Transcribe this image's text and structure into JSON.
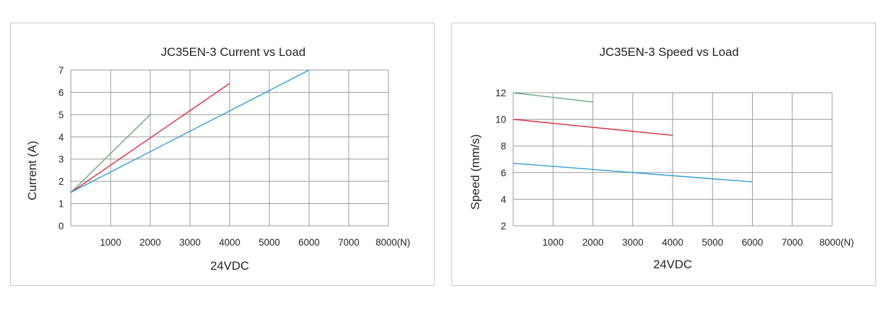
{
  "colors": {
    "grid": "#9a9a9a",
    "frame": "#c8c8c8",
    "green": "#6aa57a",
    "red": "#d9273a",
    "blue": "#2e9fd6"
  },
  "chart_data": [
    {
      "type": "line",
      "title": "JC35EN-3 Current vs Load",
      "xlabel": "24VDC",
      "ylabel": "Current (A)",
      "xlim": [
        0,
        8000
      ],
      "ylim": [
        0,
        7
      ],
      "x_ticks": [
        1000,
        2000,
        3000,
        4000,
        5000,
        6000,
        7000,
        8000
      ],
      "x_tick_labels": [
        "1000",
        "2000",
        "3000",
        "4000",
        "5000",
        "6000",
        "7000",
        "8000(N)"
      ],
      "y_ticks": [
        0,
        1,
        2,
        3,
        4,
        5,
        6,
        7
      ],
      "y_tick_labels": [
        "0",
        "1",
        "2",
        "3",
        "4",
        "5",
        "6",
        "7"
      ],
      "grid": true,
      "series": [
        {
          "color": "#6aa57a",
          "x": [
            0,
            2000
          ],
          "y": [
            1.5,
            5.0
          ]
        },
        {
          "color": "#d9273a",
          "x": [
            0,
            4000
          ],
          "y": [
            1.5,
            6.4
          ]
        },
        {
          "color": "#2e9fd6",
          "x": [
            0,
            6000
          ],
          "y": [
            1.5,
            7.0
          ]
        }
      ]
    },
    {
      "type": "line",
      "title": "JC35EN-3 Speed vs Load",
      "xlabel": "24VDC",
      "ylabel": "Speed (mm/s)",
      "xlim": [
        0,
        8000
      ],
      "ylim": [
        2,
        12
      ],
      "x_ticks": [
        1000,
        2000,
        3000,
        4000,
        5000,
        6000,
        7000,
        8000
      ],
      "x_tick_labels": [
        "1000",
        "2000",
        "3000",
        "4000",
        "5000",
        "6000",
        "7000",
        "8000(N)"
      ],
      "y_ticks": [
        2,
        4,
        6,
        8,
        10,
        12
      ],
      "y_tick_labels": [
        "2",
        "4",
        "6",
        "8",
        "10",
        "12"
      ],
      "grid": true,
      "series": [
        {
          "color": "#6aa57a",
          "x": [
            0,
            2000
          ],
          "y": [
            12.0,
            11.3
          ]
        },
        {
          "color": "#d9273a",
          "x": [
            0,
            4000
          ],
          "y": [
            10.0,
            8.8
          ]
        },
        {
          "color": "#2e9fd6",
          "x": [
            0,
            6000
          ],
          "y": [
            6.7,
            5.3
          ]
        }
      ]
    }
  ]
}
